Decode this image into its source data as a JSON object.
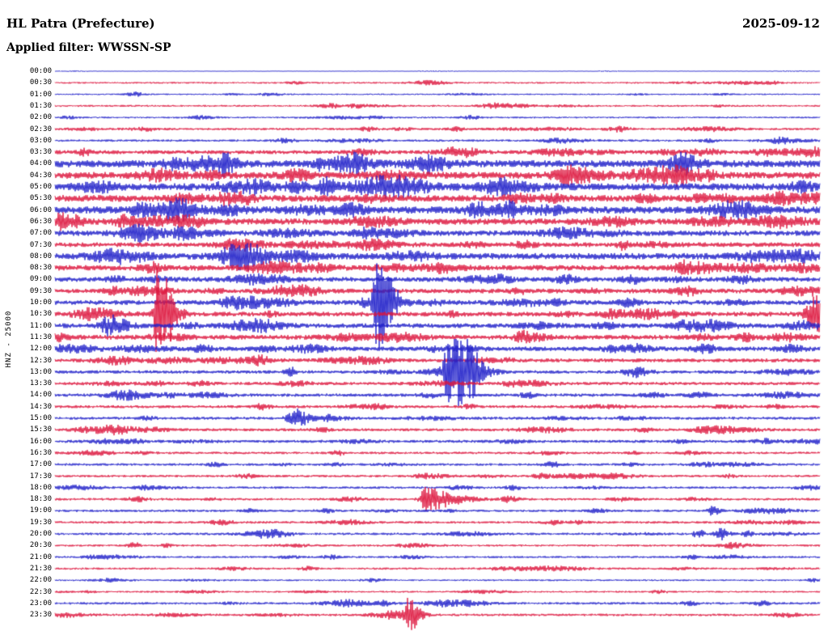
{
  "header": {
    "station": "HL Patra (Prefecture)",
    "date": "2025-09-12",
    "filter": "Applied filter: WWSSN-SP"
  },
  "axis": {
    "left_label": "HNZ - 25000"
  },
  "colors": {
    "blue": "#1e1ec8",
    "red": "#dc143c"
  },
  "chart_data": {
    "type": "line",
    "title": "Helicorder day plot, station HL Patra (Prefecture), channel HNZ, scale 25000, filter WWSSN-SP, 2025-09-12",
    "x_axis": "each row spans 30 minutes, rows 00:00 through 23:30",
    "row_minutes": 30,
    "rows": [
      {
        "label": "00:00",
        "color": "blue",
        "amp": 0.4,
        "events": []
      },
      {
        "label": "00:30",
        "color": "red",
        "amp": 1.1,
        "events": [
          {
            "x": 0.49,
            "a": 2.5,
            "w": 15
          }
        ]
      },
      {
        "label": "01:00",
        "color": "blue",
        "amp": 0.9,
        "events": [
          {
            "x": 0.105,
            "a": 2.5,
            "w": 8
          }
        ]
      },
      {
        "label": "01:30",
        "color": "red",
        "amp": 1.2,
        "events": [
          {
            "x": 0.36,
            "a": 2.5,
            "w": 10
          },
          {
            "x": 0.575,
            "a": 3,
            "w": 12
          }
        ]
      },
      {
        "label": "02:00",
        "color": "blue",
        "amp": 1.1,
        "events": [
          {
            "x": 0.545,
            "a": 2.2,
            "w": 9
          }
        ]
      },
      {
        "label": "02:30",
        "color": "red",
        "amp": 1.4,
        "events": [
          {
            "x": 0.41,
            "a": 2.5,
            "w": 7
          },
          {
            "x": 0.525,
            "a": 2.5,
            "w": 7
          },
          {
            "x": 0.735,
            "a": 3,
            "w": 10
          }
        ]
      },
      {
        "label": "03:00",
        "color": "blue",
        "amp": 1.4,
        "events": [
          {
            "x": 0.3,
            "a": 2.2,
            "w": 9
          },
          {
            "x": 0.655,
            "a": 2.5,
            "w": 10
          }
        ]
      },
      {
        "label": "03:30",
        "color": "red",
        "amp": 2.4,
        "events": [
          {
            "x": 0.85,
            "a": 3.5,
            "w": 12
          },
          {
            "x": 0.935,
            "a": 3.5,
            "w": 16
          },
          {
            "x": 0.99,
            "a": 3.5,
            "w": 8
          }
        ]
      },
      {
        "label": "04:00",
        "color": "blue",
        "amp": 4.4,
        "events": []
      },
      {
        "label": "04:30",
        "color": "red",
        "amp": 4.2,
        "events": [
          {
            "x": 0.13,
            "a": 3,
            "w": 12
          },
          {
            "x": 0.205,
            "a": 3,
            "w": 9
          }
        ]
      },
      {
        "label": "05:00",
        "color": "blue",
        "amp": 4.4,
        "events": [
          {
            "x": 0.22,
            "a": 3,
            "w": 10
          }
        ]
      },
      {
        "label": "05:30",
        "color": "red",
        "amp": 4.2,
        "events": []
      },
      {
        "label": "06:00",
        "color": "blue",
        "amp": 4.4,
        "events": [
          {
            "x": 0.65,
            "a": 3,
            "w": 12
          }
        ]
      },
      {
        "label": "06:30",
        "color": "red",
        "amp": 3.9,
        "events": []
      },
      {
        "label": "07:00",
        "color": "blue",
        "amp": 3.4,
        "events": []
      },
      {
        "label": "07:30",
        "color": "red",
        "amp": 2.9,
        "events": [
          {
            "x": 0.742,
            "a": 5,
            "w": 5
          }
        ]
      },
      {
        "label": "08:00",
        "color": "blue",
        "amp": 3.9,
        "events": []
      },
      {
        "label": "08:30",
        "color": "red",
        "amp": 3.4,
        "events": [
          {
            "x": 0.35,
            "a": 3.5,
            "w": 12
          }
        ]
      },
      {
        "label": "09:00",
        "color": "blue",
        "amp": 2.9,
        "events": [
          {
            "x": 0.08,
            "a": 2.5,
            "w": 9
          },
          {
            "x": 0.75,
            "a": 2.5,
            "w": 9
          }
        ]
      },
      {
        "label": "09:30",
        "color": "red",
        "amp": 2.9,
        "events": []
      },
      {
        "label": "10:00",
        "color": "blue",
        "amp": 2.9,
        "events": [
          {
            "x": 0.42,
            "a": 55,
            "w": 3,
            "d": 16
          }
        ]
      },
      {
        "label": "10:30",
        "color": "red",
        "amp": 2.9,
        "events": [
          {
            "x": 0.134,
            "a": 60,
            "w": 3,
            "d": 14
          },
          {
            "x": 0.995,
            "a": 22,
            "w": 8,
            "d": 20
          }
        ]
      },
      {
        "label": "11:00",
        "color": "blue",
        "amp": 2.9,
        "events": [
          {
            "x": 0.071,
            "a": 12,
            "w": 7,
            "d": 16
          }
        ]
      },
      {
        "label": "11:30",
        "color": "red",
        "amp": 2.9,
        "events": []
      },
      {
        "label": "12:00",
        "color": "blue",
        "amp": 2.8,
        "events": [
          {
            "x": 0.5,
            "a": 2.5,
            "w": 9
          },
          {
            "x": 0.73,
            "a": 3,
            "w": 9
          }
        ]
      },
      {
        "label": "12:30",
        "color": "red",
        "amp": 2.4,
        "events": [
          {
            "x": 0.09,
            "a": 2.5,
            "w": 10
          },
          {
            "x": 0.56,
            "a": 2.5,
            "w": 9
          }
        ]
      },
      {
        "label": "13:00",
        "color": "blue",
        "amp": 2.0,
        "events": [
          {
            "x": 0.305,
            "a": 8,
            "w": 3,
            "d": 5
          },
          {
            "x": 0.515,
            "a": 45,
            "w": 4,
            "d": 22
          },
          {
            "x": 0.542,
            "a": 12,
            "w": 5,
            "d": 9
          }
        ]
      },
      {
        "label": "13:30",
        "color": "red",
        "amp": 2.0,
        "events": [
          {
            "x": 0.19,
            "a": 2.5,
            "w": 9
          }
        ]
      },
      {
        "label": "14:00",
        "color": "blue",
        "amp": 2.0,
        "events": [
          {
            "x": 0.49,
            "a": 2.5,
            "w": 8
          },
          {
            "x": 0.62,
            "a": 2.5,
            "w": 8
          }
        ]
      },
      {
        "label": "14:30",
        "color": "red",
        "amp": 1.8,
        "events": []
      },
      {
        "label": "15:00",
        "color": "blue",
        "amp": 1.8,
        "events": [
          {
            "x": 0.315,
            "a": 10,
            "w": 7,
            "d": 12
          }
        ]
      },
      {
        "label": "15:30",
        "color": "red",
        "amp": 1.8,
        "events": [
          {
            "x": 0.35,
            "a": 2.5,
            "w": 7
          },
          {
            "x": 0.77,
            "a": 2.2,
            "w": 7
          }
        ]
      },
      {
        "label": "16:00",
        "color": "blue",
        "amp": 1.8,
        "events": [
          {
            "x": 0.93,
            "a": 2.5,
            "w": 10
          }
        ]
      },
      {
        "label": "16:30",
        "color": "red",
        "amp": 1.5,
        "events": [
          {
            "x": 0.37,
            "a": 2.5,
            "w": 6
          }
        ]
      },
      {
        "label": "17:00",
        "color": "blue",
        "amp": 1.5,
        "events": [
          {
            "x": 0.21,
            "a": 2.2,
            "w": 7
          },
          {
            "x": 0.65,
            "a": 2.5,
            "w": 9
          }
        ]
      },
      {
        "label": "17:30",
        "color": "red",
        "amp": 1.5,
        "events": [
          {
            "x": 0.25,
            "a": 2.5,
            "w": 7
          },
          {
            "x": 0.635,
            "a": 2.5,
            "w": 7
          }
        ]
      },
      {
        "label": "18:00",
        "color": "blue",
        "amp": 1.5,
        "events": [
          {
            "x": 0.6,
            "a": 2.2,
            "w": 7
          }
        ]
      },
      {
        "label": "18:30",
        "color": "red",
        "amp": 1.5,
        "events": [
          {
            "x": 0.483,
            "a": 14,
            "w": 4,
            "d": 26
          },
          {
            "x": 0.595,
            "a": 3.5,
            "w": 7
          }
        ]
      },
      {
        "label": "19:00",
        "color": "blue",
        "amp": 1.5,
        "events": [
          {
            "x": 0.71,
            "a": 2.5,
            "w": 7
          },
          {
            "x": 0.858,
            "a": 6,
            "w": 3,
            "d": 7
          }
        ]
      },
      {
        "label": "19:30",
        "color": "red",
        "amp": 1.5,
        "events": [
          {
            "x": 0.65,
            "a": 2.5,
            "w": 7
          }
        ]
      },
      {
        "label": "20:00",
        "color": "blue",
        "amp": 1.5,
        "events": [
          {
            "x": 0.842,
            "a": 5,
            "w": 5
          },
          {
            "x": 0.869,
            "a": 7,
            "w": 5,
            "d": 9
          },
          {
            "x": 0.906,
            "a": 4,
            "w": 4
          }
        ]
      },
      {
        "label": "20:30",
        "color": "red",
        "amp": 1.3,
        "events": [
          {
            "x": 0.103,
            "a": 4,
            "w": 5
          }
        ]
      },
      {
        "label": "21:00",
        "color": "blue",
        "amp": 1.3,
        "events": [
          {
            "x": 0.36,
            "a": 2.5,
            "w": 7
          }
        ]
      },
      {
        "label": "21:30",
        "color": "red",
        "amp": 1.3,
        "events": [
          {
            "x": 0.33,
            "a": 2.2,
            "w": 7
          }
        ]
      },
      {
        "label": "22:00",
        "color": "blue",
        "amp": 1.1,
        "events": []
      },
      {
        "label": "22:30",
        "color": "red",
        "amp": 1.1,
        "events": [
          {
            "x": 0.79,
            "a": 1.8,
            "w": 7
          }
        ]
      },
      {
        "label": "23:00",
        "color": "blue",
        "amp": 1.5,
        "events": [
          {
            "x": 0.545,
            "a": 2.8,
            "w": 14
          },
          {
            "x": 0.83,
            "a": 2.5,
            "w": 7
          },
          {
            "x": 0.925,
            "a": 2.5,
            "w": 7
          }
        ]
      },
      {
        "label": "23:30",
        "color": "red",
        "amp": 1.5,
        "events": [
          {
            "x": 0.462,
            "a": 20,
            "w": 3,
            "d": 10
          }
        ]
      }
    ]
  }
}
